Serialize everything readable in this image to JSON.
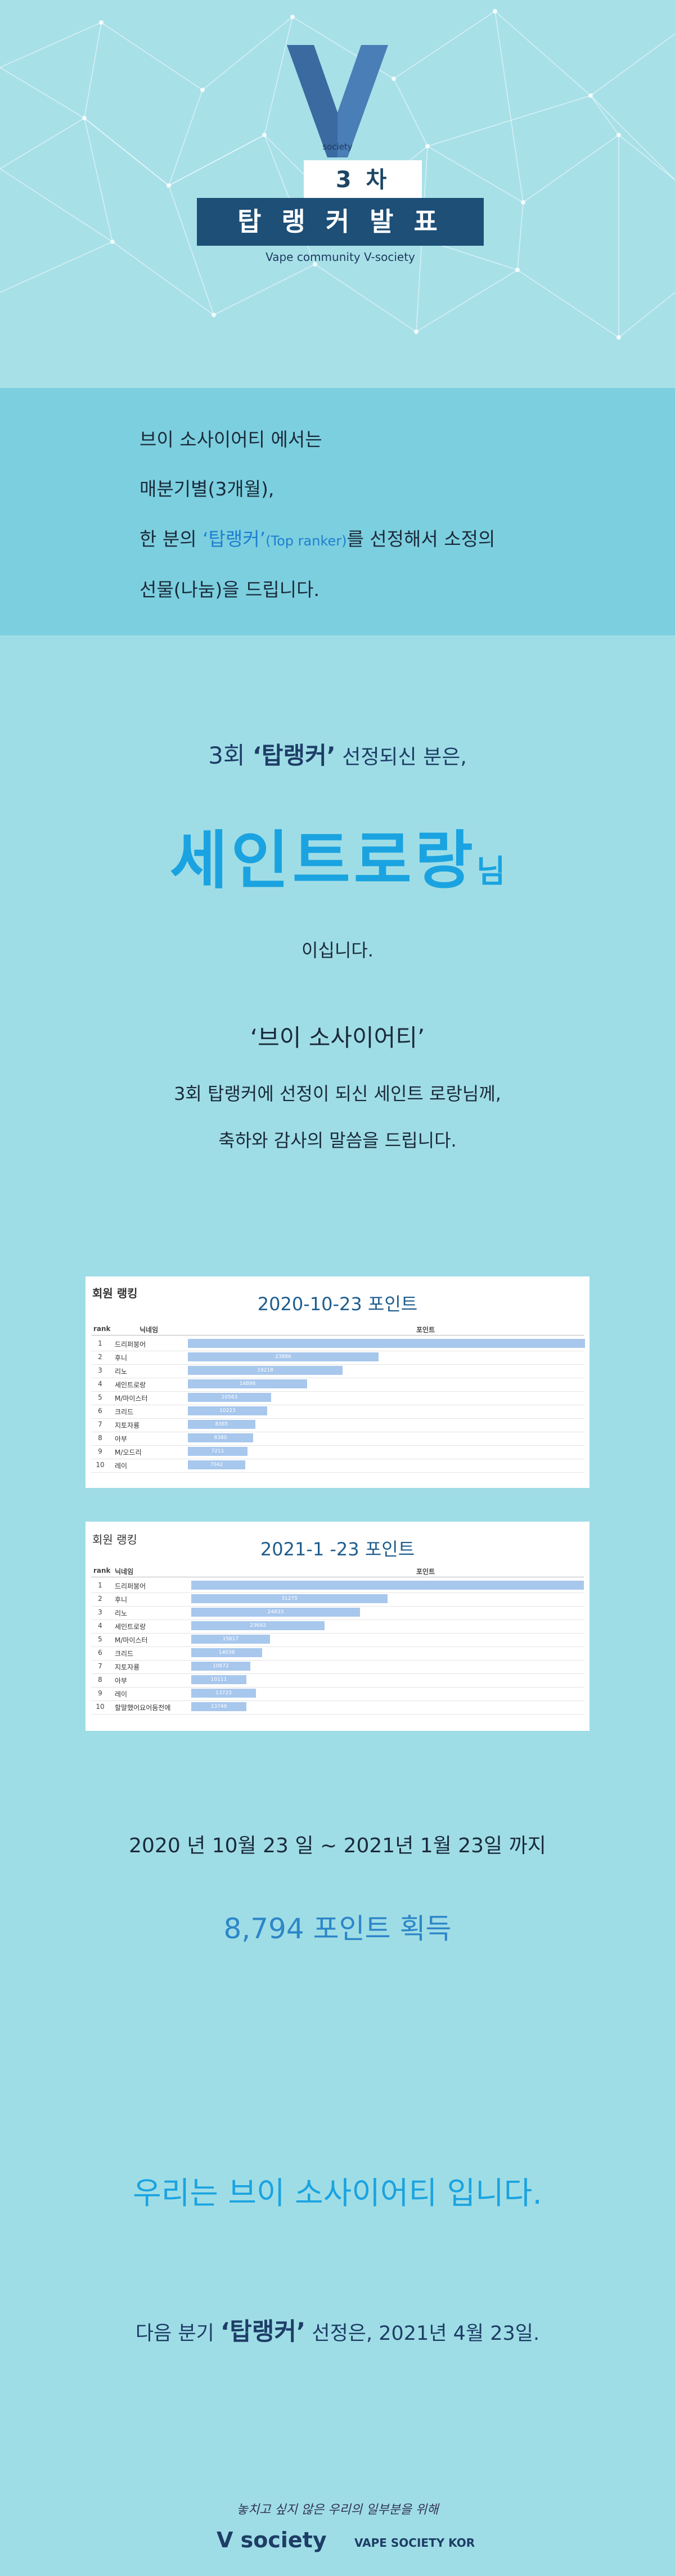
{
  "header": {
    "brand": "society",
    "round": "3 차",
    "title": "탑 랭 커  발 표",
    "subtitle": "Vape community  V-society"
  },
  "intro": {
    "line1": "브이 소사이어티 에서는",
    "line2": "매분기별(3개월),",
    "line3_pre": "한 분의 ",
    "line3_hl": "‘탑랭커’",
    "line3_small": "(Top ranker)",
    "line3_post": "를 선정해서 소정의",
    "line4": "선물(나눔)을 드립니다."
  },
  "winner": {
    "sel_pre": "3회 ",
    "sel_hl": "‘탑랭커’",
    "sel_post": " 선정되신 분은,",
    "name": "세인트로랑",
    "suffix": "님",
    "is": "이십니다.",
    "brand_quote": "‘브이 소사이어티’",
    "msg1": "3회 탑랭커에 선정이 되신 세인트 로랑님께,",
    "msg2": "축하와 감사의 말씀을 드립니다."
  },
  "ranking1": {
    "label": "회원 랭킹",
    "title": "2020-10-23 포인트",
    "col_rank": "rank",
    "col_name": "닉네임",
    "col_points": "포인트",
    "rows": [
      {
        "rank": "1",
        "name": "드리퍼붕어",
        "value": "",
        "frac": 1.0
      },
      {
        "rank": "2",
        "name": "후니",
        "value": "23886",
        "frac": 0.48
      },
      {
        "rank": "3",
        "name": "리노",
        "value": "19218",
        "frac": 0.39
      },
      {
        "rank": "4",
        "name": "세인트로랑",
        "value": "14898",
        "frac": 0.3
      },
      {
        "rank": "5",
        "name": "M/마이스터",
        "value": "10563",
        "frac": 0.21
      },
      {
        "rank": "6",
        "name": "크리드",
        "value": "10223",
        "frac": 0.2
      },
      {
        "rank": "7",
        "name": "지토자룡",
        "value": "8385",
        "frac": 0.17
      },
      {
        "rank": "8",
        "name": "아부",
        "value": "8380",
        "frac": 0.165
      },
      {
        "rank": "9",
        "name": "M/오드리",
        "value": "7211",
        "frac": 0.15
      },
      {
        "rank": "10",
        "name": "레이",
        "value": "7042",
        "frac": 0.145
      }
    ]
  },
  "ranking2": {
    "label": "회원 랭킹",
    "title": "2021-1 -23  포인트",
    "col_rank": "rank",
    "col_name": "닉네임",
    "col_points": "포인트",
    "rows": [
      {
        "rank": "1",
        "name": "드리퍼붕어",
        "value": "",
        "frac": 1.0
      },
      {
        "rank": "2",
        "name": "후니",
        "value": "31275",
        "frac": 0.5
      },
      {
        "rank": "3",
        "name": "리노",
        "value": "24833",
        "frac": 0.43
      },
      {
        "rank": "4",
        "name": "세인트로랑",
        "value": "23692",
        "frac": 0.34
      },
      {
        "rank": "5",
        "name": "M/마이스터",
        "value": "15617",
        "frac": 0.2
      },
      {
        "rank": "6",
        "name": "크리드",
        "value": "14038",
        "frac": 0.18
      },
      {
        "rank": "7",
        "name": "지토자룡",
        "value": "10672",
        "frac": 0.15
      },
      {
        "rank": "8",
        "name": "아부",
        "value": "10111",
        "frac": 0.14
      },
      {
        "rank": "9",
        "name": "레이",
        "value": "13723",
        "frac": 0.165
      },
      {
        "rank": "10",
        "name": "할말했어요어둠전에",
        "value": "13749",
        "frac": 0.14
      }
    ]
  },
  "summary": {
    "period": "2020 년 10월 23 일 ~ 2021년 1월 23일 까지",
    "points": "8,794 포인트 획득"
  },
  "motto": "우리는 브이 소사이어티 입니다.",
  "next": {
    "pre": "다음 분기 ",
    "hl": "‘탑랭커’",
    "post": " 선정은,  2021년 4월 23일."
  },
  "footer": {
    "tagline": "놓치고 싶지 않은 우리의 일부분을 위해",
    "logo": "V society",
    "logo2": "VAPE SOCIETY KOR"
  },
  "colors": {
    "background": "#9fdde6",
    "intro_band": "#7ccfdf",
    "title_box": "#1d4f77",
    "accent": "#1aa3e0",
    "bar": "#a7c7ed"
  }
}
